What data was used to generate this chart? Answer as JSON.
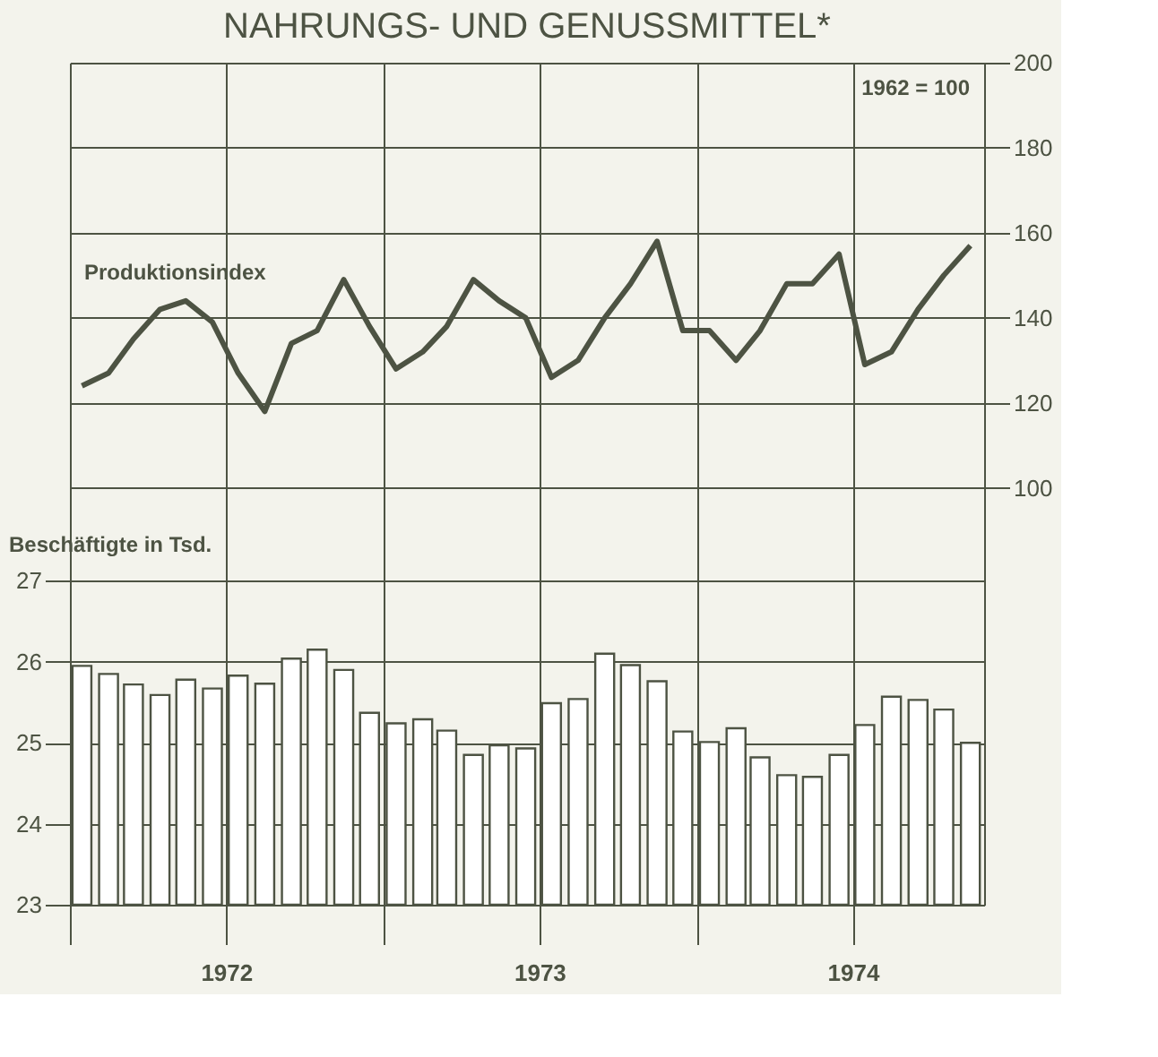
{
  "chart_data": {
    "type": "bar",
    "title": "NAHRUNGS- UND GENUSSMITTEL*",
    "ylabel": "Beschäftigte in Tsd.",
    "annotations": [
      "1962 = 100"
    ],
    "x": [
      "1972-01-15",
      "1972-02-15",
      "1972-03-15",
      "1972-04-15",
      "1972-05-15",
      "1972-06-15",
      "1972-07-15",
      "1972-08-15",
      "1972-09-15",
      "1972-10-15",
      "1972-11-15",
      "1972-12-15",
      "1973-01-15",
      "1973-02-15",
      "1973-03-15",
      "1973-04-15",
      "1973-05-15",
      "1973-06-15",
      "1973-07-15",
      "1973-08-15",
      "1973-09-15",
      "1973-10-15",
      "1973-11-15",
      "1973-12-15",
      "1974-01-15",
      "1974-02-15",
      "1974-03-15",
      "1974-04-15",
      "1974-05-15",
      "1974-06-15",
      "1974-07-15",
      "1974-08-15",
      "1974-09-15",
      "1974-10-15",
      "1974-11-15"
    ],
    "series": [
      {
        "color": "#ffffff",
        "values": [
          25.95,
          25.85,
          25.72,
          25.59,
          25.78,
          25.67,
          25.83,
          25.73,
          26.04,
          26.15,
          25.9,
          25.37,
          25.24,
          25.29,
          25.15,
          24.85,
          24.97,
          24.93,
          25.49,
          25.54,
          26.1,
          25.96,
          25.76,
          25.14,
          25.01,
          25.18,
          24.82,
          24.6,
          24.58,
          24.85,
          25.22,
          25.57,
          25.53,
          25.41,
          25.0
        ]
      },
      {
        "type": "line",
        "axis": "y2",
        "name": "Produktionsindex",
        "color": "#4d5343",
        "values": [
          124,
          127,
          135,
          142,
          144,
          139,
          127,
          118,
          134,
          137,
          149,
          138,
          128,
          132,
          138,
          149,
          144,
          140,
          126,
          130,
          140,
          148,
          158,
          137,
          137,
          130,
          137,
          148,
          148,
          155,
          129,
          132,
          142,
          150,
          157
        ]
      }
    ],
    "xlim": [
      "1972-01",
      "1974-12"
    ],
    "xticks": [
      {
        "value": "1972-01",
        "label": null
      },
      {
        "value": "1972-07",
        "label": "1972"
      },
      {
        "value": "1973-01",
        "label": null
      },
      {
        "value": "1973-07",
        "label": "1973"
      },
      {
        "value": "1974-01",
        "label": null
      },
      {
        "value": "1974-07",
        "label": "1974"
      }
    ],
    "ylim": [
      23,
      33.4
    ],
    "yticks": [
      23,
      24,
      25,
      26,
      27
    ],
    "y2lim": [
      2,
      200
    ],
    "y2ticks": [
      100,
      120,
      140,
      160,
      180,
      200
    ],
    "grid": true,
    "line_style": "solid",
    "marker": "none"
  }
}
